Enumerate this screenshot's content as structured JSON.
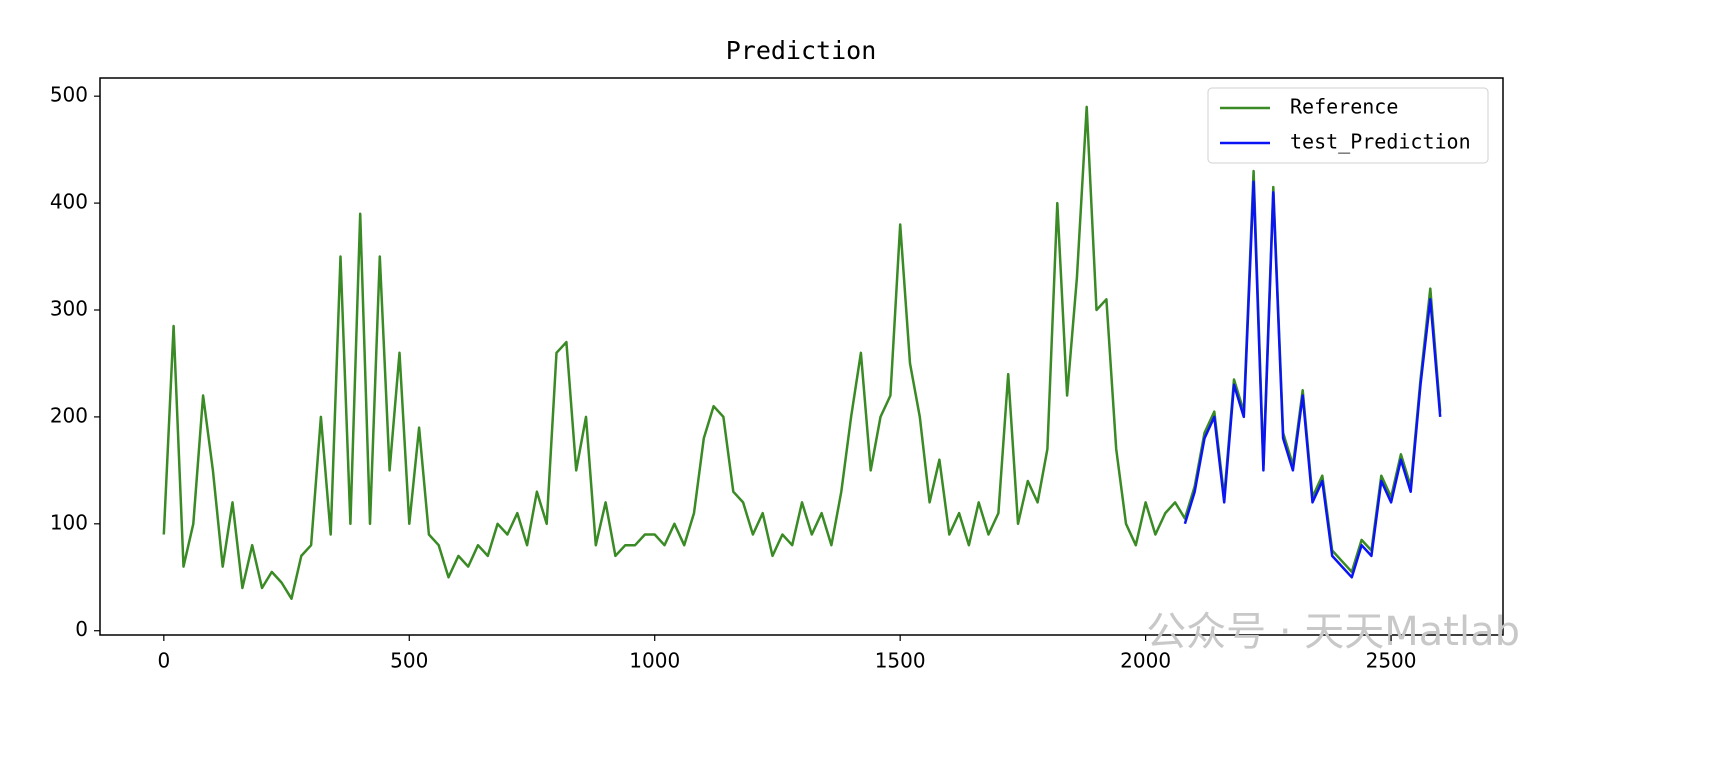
{
  "chart_data": {
    "type": "line",
    "title": "Prediction",
    "x": [
      0,
      20,
      40,
      60,
      80,
      100,
      120,
      140,
      160,
      180,
      200,
      220,
      240,
      260,
      280,
      300,
      320,
      340,
      360,
      380,
      400,
      420,
      440,
      460,
      480,
      500,
      520,
      540,
      560,
      580,
      600,
      620,
      640,
      660,
      680,
      700,
      720,
      740,
      760,
      780,
      800,
      820,
      840,
      860,
      880,
      900,
      920,
      940,
      960,
      980,
      1000,
      1020,
      1040,
      1060,
      1080,
      1100,
      1120,
      1140,
      1160,
      1180,
      1200,
      1220,
      1240,
      1260,
      1280,
      1300,
      1320,
      1340,
      1360,
      1380,
      1400,
      1420,
      1440,
      1460,
      1480,
      1500,
      1520,
      1540,
      1560,
      1580,
      1600,
      1620,
      1640,
      1660,
      1680,
      1700,
      1720,
      1740,
      1760,
      1780,
      1800,
      1820,
      1840,
      1860,
      1880,
      1900,
      1920,
      1940,
      1960,
      1980,
      2000,
      2020,
      2040,
      2060,
      2080,
      2100,
      2120,
      2140,
      2160,
      2180,
      2200,
      2220,
      2240,
      2260,
      2280,
      2300,
      2320,
      2340,
      2360,
      2380,
      2400,
      2420,
      2440,
      2460,
      2480,
      2500,
      2520,
      2540,
      2560,
      2580,
      2600
    ],
    "series": [
      {
        "name": "Reference",
        "color": "#3a8a25",
        "values": [
          90,
          285,
          60,
          100,
          220,
          150,
          60,
          120,
          40,
          80,
          40,
          55,
          45,
          30,
          70,
          80,
          200,
          90,
          350,
          100,
          390,
          100,
          350,
          150,
          260,
          100,
          190,
          90,
          80,
          50,
          70,
          60,
          80,
          70,
          100,
          90,
          110,
          80,
          130,
          100,
          260,
          270,
          150,
          200,
          80,
          120,
          70,
          80,
          80,
          90,
          90,
          80,
          100,
          80,
          110,
          180,
          210,
          200,
          130,
          120,
          90,
          110,
          70,
          90,
          80,
          120,
          90,
          110,
          80,
          130,
          200,
          260,
          150,
          200,
          220,
          380,
          250,
          200,
          120,
          160,
          90,
          110,
          80,
          120,
          90,
          110,
          240,
          100,
          140,
          120,
          170,
          400,
          220,
          330,
          490,
          300,
          310,
          170,
          100,
          80,
          120,
          90,
          110,
          120,
          105,
          135,
          185,
          205,
          125,
          235,
          205,
          430,
          155,
          415,
          185,
          155,
          225,
          125,
          145,
          75,
          65,
          55,
          85,
          75,
          145,
          125,
          165,
          135,
          235,
          320,
          205
        ]
      },
      {
        "name": "test_Prediction",
        "color": "#0a14f5",
        "values": [
          null,
          null,
          null,
          null,
          null,
          null,
          null,
          null,
          null,
          null,
          null,
          null,
          null,
          null,
          null,
          null,
          null,
          null,
          null,
          null,
          null,
          null,
          null,
          null,
          null,
          null,
          null,
          null,
          null,
          null,
          null,
          null,
          null,
          null,
          null,
          null,
          null,
          null,
          null,
          null,
          null,
          null,
          null,
          null,
          null,
          null,
          null,
          null,
          null,
          null,
          null,
          null,
          null,
          null,
          null,
          null,
          null,
          null,
          null,
          null,
          null,
          null,
          null,
          null,
          null,
          null,
          null,
          null,
          null,
          null,
          null,
          null,
          null,
          null,
          null,
          null,
          null,
          null,
          null,
          null,
          null,
          null,
          null,
          null,
          null,
          null,
          null,
          null,
          null,
          null,
          null,
          null,
          null,
          null,
          null,
          null,
          null,
          null,
          null,
          null,
          null,
          null,
          null,
          null,
          100,
          130,
          180,
          200,
          120,
          230,
          200,
          420,
          150,
          410,
          180,
          150,
          220,
          120,
          140,
          70,
          60,
          50,
          80,
          70,
          140,
          120,
          160,
          130,
          230,
          310,
          200
        ]
      }
    ],
    "xlim": [
      -130,
      2728
    ],
    "ylim": [
      -4,
      517
    ],
    "xticks": [
      0,
      500,
      1000,
      1500,
      2000,
      2500
    ],
    "yticks": [
      0,
      100,
      200,
      300,
      400,
      500
    ],
    "grid": false,
    "legend": "upper right",
    "watermark": "公众号 · 天天Matlab"
  }
}
